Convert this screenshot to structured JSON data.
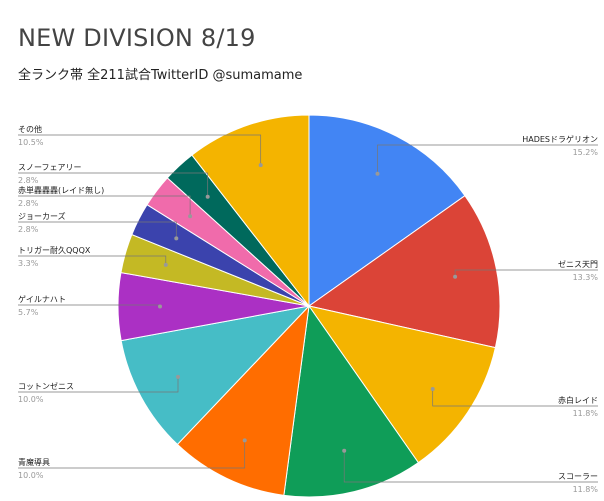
{
  "title": "NEW DIVISION 8/19",
  "subtitle": "全ランク帯 全211試合TwitterID @sumamame",
  "chart_data": {
    "type": "pie",
    "title": "NEW DIVISION 8/19",
    "subtitle": "全ランク帯 全211試合TwitterID @sumamame",
    "slices": [
      {
        "label": "HADESドラゲリオン",
        "value": 15.2,
        "pct_label": "15.2%",
        "color": "#4285f4"
      },
      {
        "label": "ゼニス天門",
        "value": 13.3,
        "pct_label": "13.3%",
        "color": "#db4437"
      },
      {
        "label": "赤白レイド",
        "value": 11.8,
        "pct_label": "11.8%",
        "color": "#f4b400"
      },
      {
        "label": "スコーラー",
        "value": 11.8,
        "pct_label": "11.8%",
        "color": "#0f9d58"
      },
      {
        "label": "青魔導具",
        "value": 10.0,
        "pct_label": "10.0%",
        "color": "#ff6d00"
      },
      {
        "label": "コットンゼニス",
        "value": 10.0,
        "pct_label": "10.0%",
        "color": "#46bdc6"
      },
      {
        "label": "ゲイルナハト",
        "value": 5.7,
        "pct_label": "5.7%",
        "color": "#ab30c4"
      },
      {
        "label": "トリガー耐久QQQX",
        "value": 3.3,
        "pct_label": "3.3%",
        "color": "#c4b924"
      },
      {
        "label": "ジョーカーズ",
        "value": 2.8,
        "pct_label": "2.8%",
        "color": "#3b43ad"
      },
      {
        "label": "赤単轟轟轟(レイド無し)",
        "value": 2.8,
        "pct_label": "2.8%",
        "color": "#f06bab"
      },
      {
        "label": "スノーフェアリー",
        "value": 2.8,
        "pct_label": "2.8%",
        "color": "#00695c"
      },
      {
        "label": "その他",
        "value": 10.5,
        "pct_label": "10.5%",
        "color": "#f4b400"
      }
    ],
    "legend": "none",
    "label_placement": "outside-with-leader-lines"
  }
}
